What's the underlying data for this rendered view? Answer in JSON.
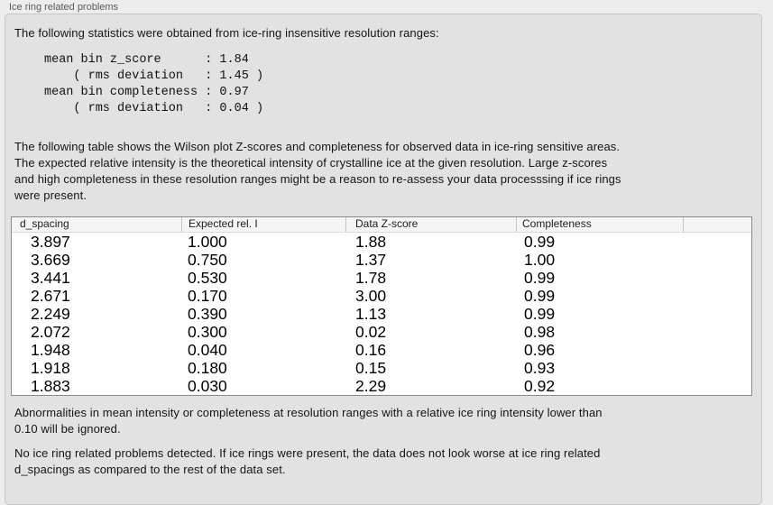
{
  "window": {
    "title": "Ice ring related problems"
  },
  "panel": {
    "intro": "The following statistics were obtained from ice-ring insensitive resolution ranges:",
    "stats_block": "mean bin z_score      : 1.84\n    ( rms deviation   : 1.45 )\nmean bin completeness : 0.97\n    ( rms deviation   : 0.04 )",
    "stats": {
      "mean_bin_z_score": "1.84",
      "z_score_rms_deviation": "1.45",
      "mean_bin_completeness": "0.97",
      "completeness_rms_deviation": "0.04"
    },
    "table_description": "The following table shows the Wilson plot Z-scores and completeness for observed data in ice-ring sensitive areas.\nThe expected relative intensity is the theoretical intensity of crystalline ice at the given resolution. Large z-scores\nand high completeness in these resolution ranges might be a reason to re-assess your data processsing if ice rings\nwere present.",
    "table": {
      "columns": [
        "d_spacing",
        "Expected rel. I",
        "Data Z-score",
        "Completeness"
      ],
      "rows": [
        [
          "3.897",
          "1.000",
          "1.88",
          "0.99"
        ],
        [
          "3.669",
          "0.750",
          "1.37",
          "1.00"
        ],
        [
          "3.441",
          "0.530",
          "1.78",
          "0.99"
        ],
        [
          "2.671",
          "0.170",
          "3.00",
          "0.99"
        ],
        [
          "2.249",
          "0.390",
          "1.13",
          "0.99"
        ],
        [
          "2.072",
          "0.300",
          "0.02",
          "0.98"
        ],
        [
          "1.948",
          "0.040",
          "0.16",
          "0.96"
        ],
        [
          "1.918",
          "0.180",
          "0.15",
          "0.93"
        ],
        [
          "1.883",
          "0.030",
          "2.29",
          "0.92"
        ]
      ]
    },
    "ignore_note": "Abnormalities in mean intensity or completeness at resolution ranges with a relative ice ring intensity lower than\n0.10 will be ignored.",
    "conclusion": "No ice ring related problems detected. If ice rings were present, the data does not look worse at ice ring related\nd_spacings as compared to the rest of the data set."
  },
  "colors": {
    "page_background": "#ededed",
    "panel_background": "#e2e2e2",
    "panel_border": "#c6c6c6",
    "table_border": "#8a8a8a",
    "table_header_background": "#f5f5f5"
  }
}
